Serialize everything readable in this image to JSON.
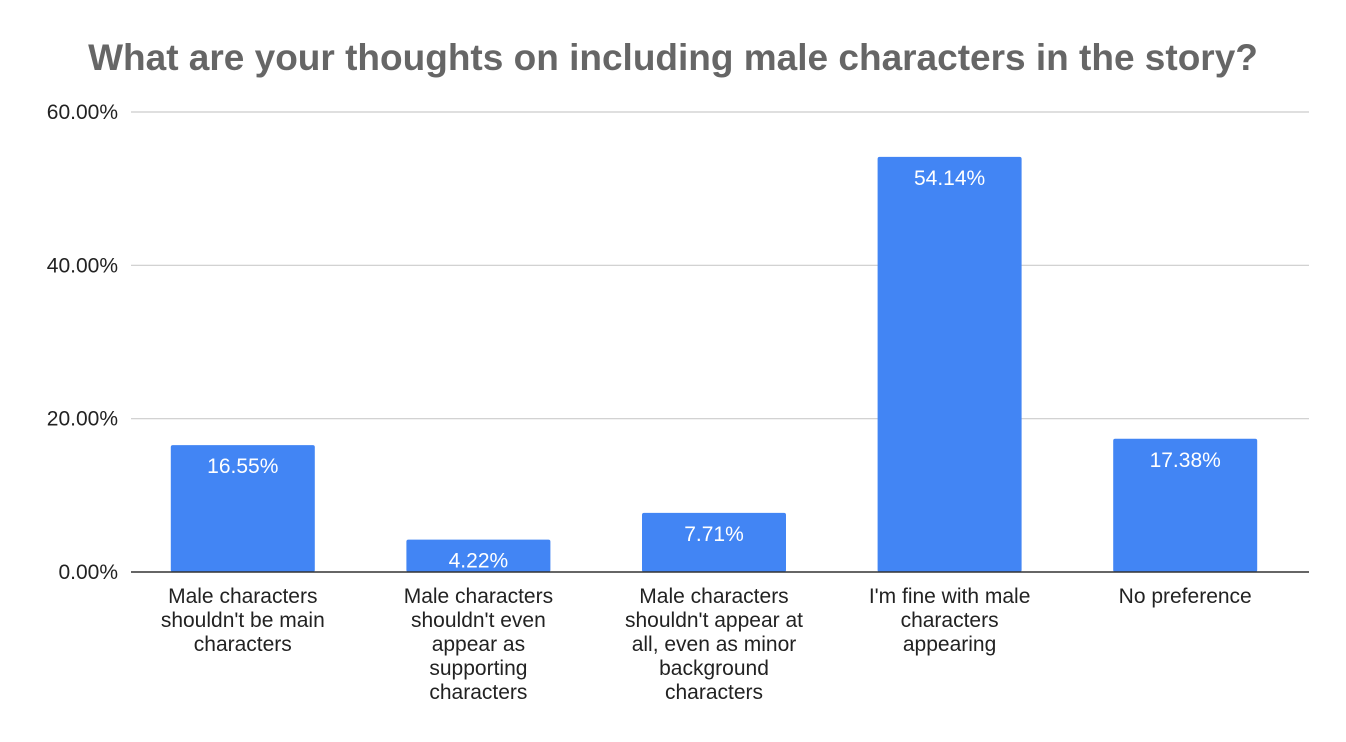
{
  "chart_data": {
    "type": "bar",
    "title": "What are your thoughts on including male characters in the story?",
    "categories": [
      [
        "Male characters",
        "shouldn't be main",
        "characters"
      ],
      [
        "Male characters",
        "shouldn't even",
        "appear as",
        "supporting",
        "characters"
      ],
      [
        "Male characters",
        "shouldn't appear at",
        "all, even as minor",
        "background",
        "characters"
      ],
      [
        "I'm fine with male",
        "characters",
        "appearing"
      ],
      [
        "No preference"
      ]
    ],
    "values": [
      16.55,
      4.22,
      7.71,
      54.14,
      17.38
    ],
    "data_labels": [
      "16.55%",
      "4.22%",
      "7.71%",
      "54.14%",
      "17.38%"
    ],
    "yticks": [
      "0.00%",
      "20.00%",
      "40.00%",
      "60.00%"
    ],
    "ytick_values": [
      0,
      20,
      40,
      60
    ],
    "ylim": [
      0,
      60
    ],
    "grid": true,
    "legend": "none",
    "colors": {
      "bar": "#4285f4",
      "grid": "#cccccc",
      "axis": "#333333",
      "title": "#666666"
    }
  }
}
